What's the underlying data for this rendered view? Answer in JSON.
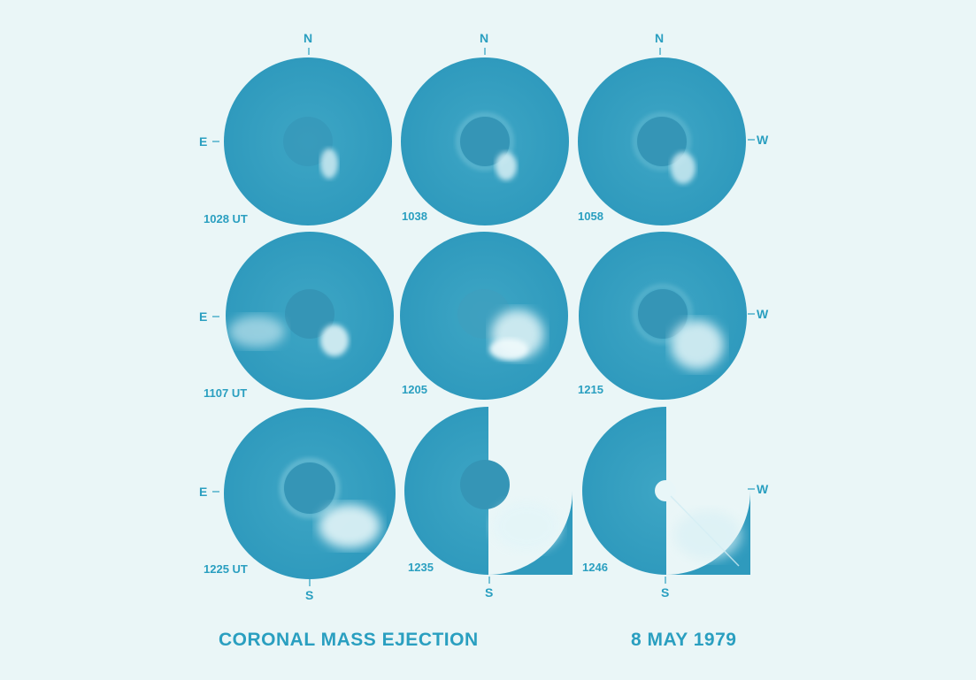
{
  "title": "CORONAL MASS EJECTION",
  "date": "8 MAY 1979",
  "directions": {
    "north": "N",
    "south": "S",
    "east": "E",
    "west": "W"
  },
  "frames": [
    {
      "time": "1028 UT"
    },
    {
      "time": "1038"
    },
    {
      "time": "1058"
    },
    {
      "time": "1107 UT"
    },
    {
      "time": "1205"
    },
    {
      "time": "1215"
    },
    {
      "time": "1225 UT"
    },
    {
      "time": "1235"
    },
    {
      "time": "1246"
    }
  ],
  "colors": {
    "background": "#eaf6f7",
    "disk": "#3aa3c3",
    "ink": "#2a9fc0",
    "ejecta": "#d8f0f5"
  }
}
